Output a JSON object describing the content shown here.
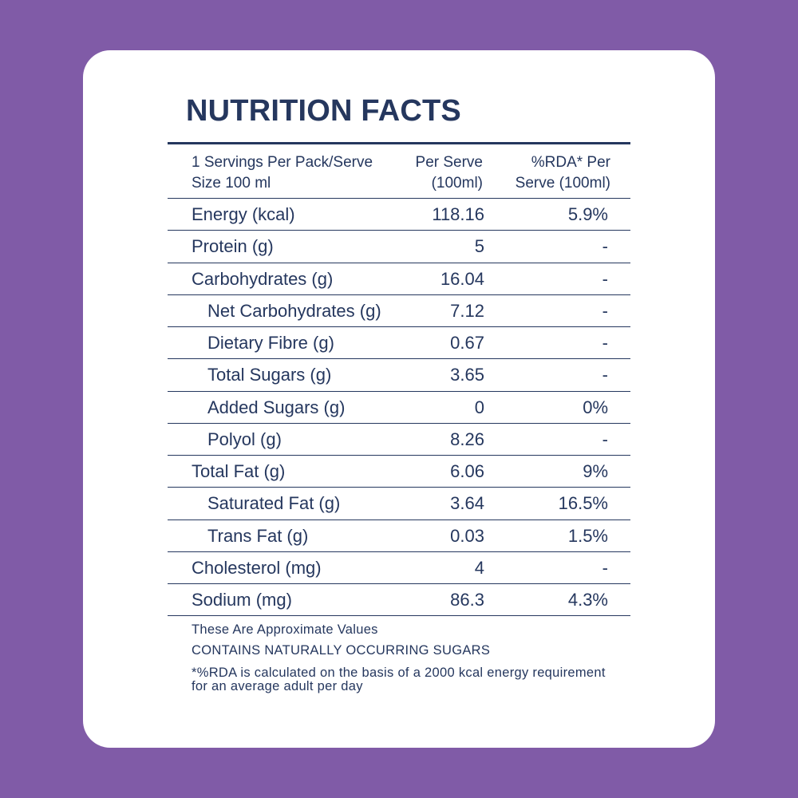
{
  "title": "NUTRITION FACTS",
  "header": {
    "serving": "1 Servings Per Pack/Serve Size 100 ml",
    "per_serve": "Per Serve (100ml)",
    "rda": "%RDA* Per Serve (100ml)"
  },
  "rows": [
    {
      "name": "Energy (kcal)",
      "per_serve": "118.16",
      "rda": "5.9%"
    },
    {
      "name": "Protein (g)",
      "per_serve": "5",
      "rda": "-"
    },
    {
      "name": "Carbohydrates (g)",
      "per_serve": "16.04",
      "rda": "-"
    },
    {
      "name": "Net Carbohydrates (g)",
      "per_serve": "7.12",
      "rda": "-"
    },
    {
      "name": "Dietary Fibre (g)",
      "per_serve": "0.67",
      "rda": "-"
    },
    {
      "name": "Total Sugars (g)",
      "per_serve": "3.65",
      "rda": "-"
    },
    {
      "name": "Added Sugars (g)",
      "per_serve": "0",
      "rda": "0%"
    },
    {
      "name": "Polyol (g)",
      "per_serve": "8.26",
      "rda": "-"
    },
    {
      "name": "Total Fat (g)",
      "per_serve": "6.06",
      "rda": "9%"
    },
    {
      "name": "Saturated Fat (g)",
      "per_serve": "3.64",
      "rda": "16.5%"
    },
    {
      "name": "Trans Fat (g)",
      "per_serve": "0.03",
      "rda": "1.5%"
    },
    {
      "name": "Cholesterol (mg)",
      "per_serve": "4",
      "rda": "-"
    },
    {
      "name": "Sodium (mg)",
      "per_serve": "86.3",
      "rda": "4.3%"
    }
  ],
  "notes": {
    "approximate": "These Are Approximate Values",
    "sugars": "CONTAINS NATURALLY OCCURRING SUGARS",
    "rda_basis": "*%RDA is calculated on the basis of a 2000 kcal energy requirement for an average adult per day"
  },
  "colors": {
    "background": "#805ba7",
    "card": "#ffffff",
    "text": "#25375e"
  }
}
